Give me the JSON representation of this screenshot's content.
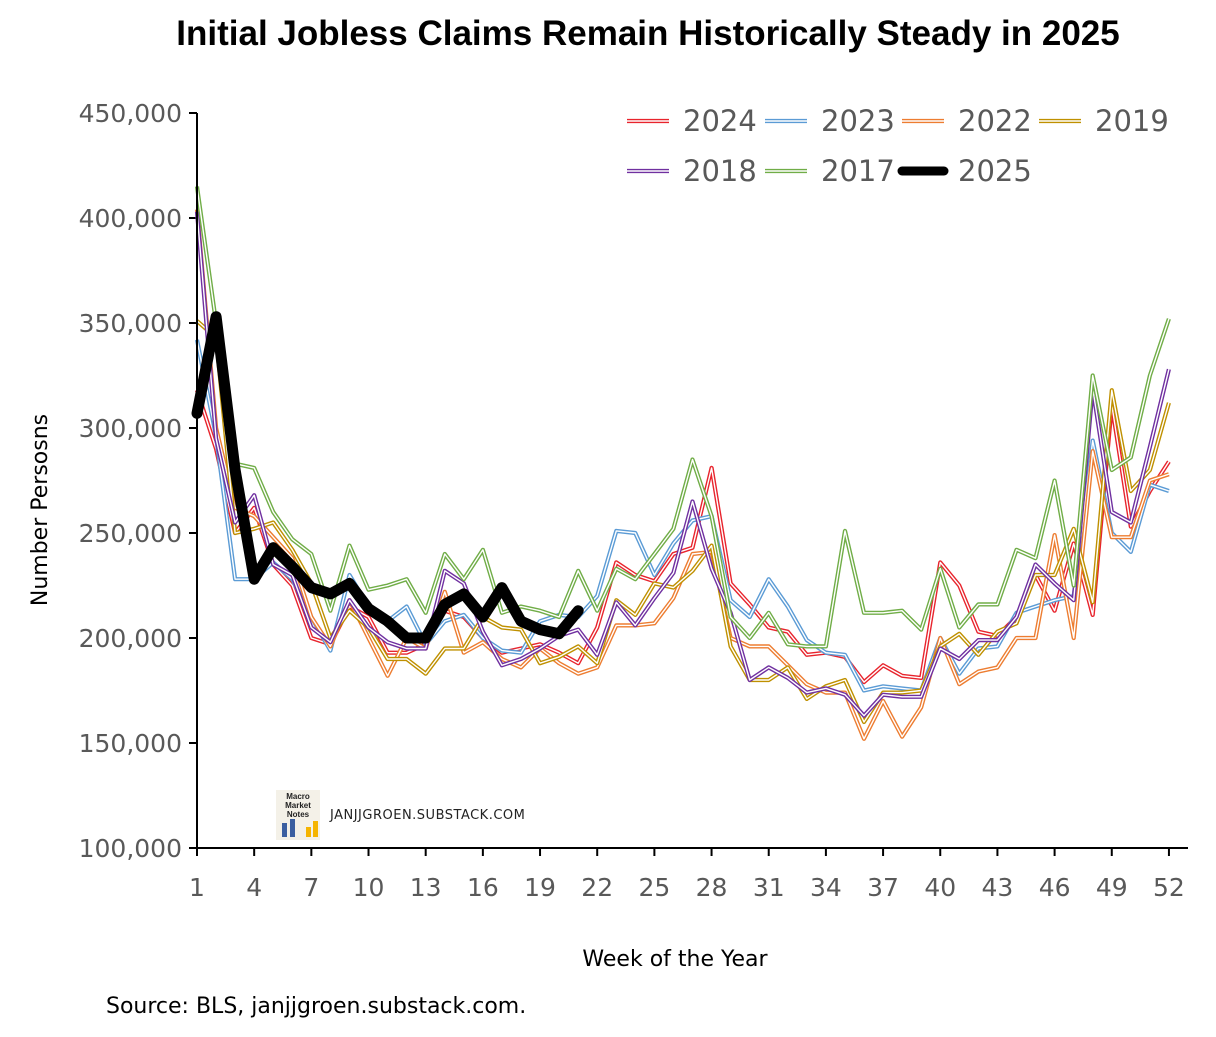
{
  "chart_data": {
    "type": "line",
    "title": "Initial Jobless Claims Remain Historically Steady in 2025",
    "xlabel": "Week of the Year",
    "ylabel": "Number Persosns",
    "ylim": [
      100000,
      450000
    ],
    "xlim": [
      1,
      53
    ],
    "x_ticks": [
      1,
      4,
      7,
      10,
      13,
      16,
      19,
      22,
      25,
      28,
      31,
      34,
      37,
      40,
      43,
      46,
      49,
      52
    ],
    "y_ticks": [
      100000,
      150000,
      200000,
      250000,
      300000,
      350000,
      400000,
      450000
    ],
    "y_tick_labels": [
      "100,000",
      "150,000",
      "200,000",
      "250,000",
      "300,000",
      "350,000",
      "400,000",
      "450,000"
    ],
    "legend_position": "top-right",
    "grid": false,
    "series": [
      {
        "name": "2024",
        "color": "#e8242d",
        "style": "double",
        "values": [
          318000,
          290000,
          250000,
          262000,
          235000,
          225000,
          200000,
          197000,
          215000,
          210000,
          193000,
          193000,
          197000,
          213000,
          210000,
          200000,
          193000,
          195000,
          197000,
          193000,
          188000,
          205000,
          236000,
          230000,
          227000,
          240000,
          243000,
          281000,
          226000,
          216000,
          205000,
          203000,
          192000,
          193000,
          191000,
          179000,
          187000,
          182000,
          181000,
          236000,
          225000,
          203000,
          201000,
          210000,
          230000,
          213000,
          245000,
          211000,
          311000,
          253000,
          270000,
          284000
        ]
      },
      {
        "name": "2023",
        "color": "#5b9bd5",
        "style": "double",
        "values": [
          342000,
          296000,
          228000,
          228000,
          236000,
          228000,
          210000,
          194000,
          230000,
          215000,
          208000,
          215000,
          197000,
          208000,
          211000,
          200000,
          194000,
          193000,
          208000,
          211000,
          210000,
          220000,
          251000,
          250000,
          230000,
          245000,
          256000,
          258000,
          218000,
          210000,
          228000,
          215000,
          199000,
          193000,
          192000,
          175000,
          177000,
          176000,
          175000,
          200000,
          183000,
          195000,
          196000,
          212000,
          215000,
          218000,
          220000,
          294000,
          250000,
          241000,
          273000,
          270000
        ]
      },
      {
        "name": "2022",
        "color": "#ed7d31",
        "style": "double",
        "values": [
          404000,
          300000,
          262000,
          258000,
          248000,
          238000,
          210000,
          196000,
          218000,
          200000,
          182000,
          200000,
          195000,
          222000,
          193000,
          198000,
          190000,
          186000,
          195000,
          188000,
          183000,
          186000,
          206000,
          206000,
          207000,
          219000,
          240000,
          241000,
          200000,
          196000,
          196000,
          187000,
          178000,
          174000,
          174000,
          152000,
          170000,
          153000,
          167000,
          200000,
          178000,
          184000,
          186000,
          200000,
          200000,
          249000,
          200000,
          289000,
          248000,
          248000,
          275000,
          278000
        ]
      },
      {
        "name": "2019",
        "color": "#bf9000",
        "style": "double",
        "values": [
          351000,
          343000,
          250000,
          252000,
          255000,
          242000,
          226000,
          200000,
          213000,
          205000,
          190000,
          190000,
          183000,
          195000,
          195000,
          210000,
          205000,
          204000,
          188000,
          191000,
          196000,
          188000,
          218000,
          211000,
          226000,
          224000,
          232000,
          244000,
          196000,
          180000,
          180000,
          186000,
          171000,
          177000,
          180000,
          160000,
          174000,
          174000,
          175000,
          196000,
          202000,
          192000,
          203000,
          207000,
          230000,
          230000,
          252000,
          217000,
          318000,
          270000,
          280000,
          312000
        ]
      },
      {
        "name": "2018",
        "color": "#7030a0",
        "style": "double",
        "values": [
          403000,
          295000,
          255000,
          268000,
          235000,
          230000,
          205000,
          198000,
          218000,
          205000,
          198000,
          195000,
          195000,
          232000,
          226000,
          203000,
          187000,
          190000,
          195000,
          201000,
          204000,
          192000,
          217000,
          206000,
          219000,
          231000,
          265000,
          233000,
          212000,
          180000,
          186000,
          181000,
          174000,
          176000,
          173000,
          163000,
          173000,
          172000,
          172000,
          195000,
          190000,
          199000,
          199000,
          210000,
          235000,
          226000,
          218000,
          319000,
          260000,
          255000,
          291000,
          328000
        ]
      },
      {
        "name": "2017",
        "color": "#70ad47",
        "style": "double",
        "values": [
          415000,
          350000,
          283000,
          281000,
          260000,
          247000,
          240000,
          213000,
          244000,
          223000,
          225000,
          228000,
          212000,
          240000,
          228000,
          242000,
          212000,
          215000,
          213000,
          210000,
          232000,
          213000,
          233000,
          228000,
          240000,
          252000,
          285000,
          258000,
          210000,
          200000,
          212000,
          197000,
          196000,
          196000,
          251000,
          212000,
          212000,
          213000,
          204000,
          233000,
          205000,
          216000,
          216000,
          242000,
          238000,
          275000,
          225000,
          325000,
          280000,
          286000,
          325000,
          352000
        ]
      },
      {
        "name": "2025",
        "color": "#000000",
        "style": "bold",
        "values": [
          307000,
          353000,
          280000,
          228000,
          243000,
          234000,
          224000,
          221000,
          226000,
          214000,
          208000,
          200000,
          200000,
          216000,
          221000,
          210000,
          224000,
          208000,
          204000,
          202000,
          213000
        ]
      }
    ]
  },
  "watermark": {
    "logo_text": "Macro Market Notes",
    "text": "JANJJGROEN.SUBSTACK.COM"
  },
  "source_note": "Source: BLS, janjjgroen.substack.com."
}
